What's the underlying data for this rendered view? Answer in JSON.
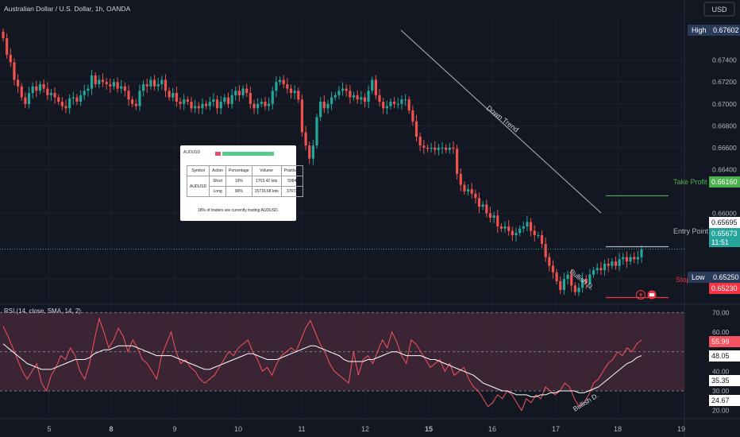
{
  "chart_data": [
    {
      "type": "candlestick",
      "title": "Australian Dollar / U.S. Dollar, 1h, OANDA",
      "currency": "USD",
      "ylim": [
        0.6519,
        0.6779
      ],
      "y_ticks": [
        "0.67400",
        "0.67200",
        "0.67000",
        "0.66800",
        "0.66600",
        "0.66400",
        "0.66000",
        "0.65400"
      ],
      "x_ticks": [
        {
          "label": "5",
          "bold": false
        },
        {
          "label": "8",
          "bold": true
        },
        {
          "label": "9",
          "bold": false
        },
        {
          "label": "10",
          "bold": false
        },
        {
          "label": "11",
          "bold": false
        },
        {
          "label": "12",
          "bold": false
        },
        {
          "label": "15",
          "bold": true
        },
        {
          "label": "16",
          "bold": false
        },
        {
          "label": "17",
          "bold": false
        },
        {
          "label": "18",
          "bold": false
        },
        {
          "label": "19",
          "bold": false
        }
      ],
      "close_series": [
        0.676,
        0.6745,
        0.6738,
        0.6722,
        0.6716,
        0.6706,
        0.67,
        0.671,
        0.6716,
        0.6712,
        0.6718,
        0.6714,
        0.6708,
        0.671,
        0.6706,
        0.6702,
        0.6698,
        0.6696,
        0.6705,
        0.6706,
        0.6702,
        0.6708,
        0.6712,
        0.6714,
        0.6726,
        0.6718,
        0.6722,
        0.672,
        0.6718,
        0.6716,
        0.672,
        0.6714,
        0.6716,
        0.6712,
        0.6704,
        0.67,
        0.6698,
        0.6712,
        0.6718,
        0.6716,
        0.6722,
        0.6716,
        0.6718,
        0.6722,
        0.6712,
        0.6706,
        0.671,
        0.6702,
        0.67,
        0.6704,
        0.6702,
        0.6696,
        0.6698,
        0.6696,
        0.67,
        0.6698,
        0.6702,
        0.6704,
        0.6696,
        0.6702,
        0.6706,
        0.67,
        0.6708,
        0.6712,
        0.6708,
        0.6714,
        0.671,
        0.67,
        0.6696,
        0.67,
        0.6702,
        0.6698,
        0.67,
        0.6712,
        0.672,
        0.6722,
        0.6718,
        0.6714,
        0.671,
        0.6712,
        0.6704,
        0.6674,
        0.6662,
        0.665,
        0.6662,
        0.6688,
        0.6702,
        0.6696,
        0.67,
        0.6706,
        0.6708,
        0.6712,
        0.6714,
        0.6712,
        0.6706,
        0.6708,
        0.6704,
        0.6706,
        0.6702,
        0.6712,
        0.6722,
        0.6708,
        0.6702,
        0.6696,
        0.6698,
        0.6702,
        0.67,
        0.67,
        0.6704,
        0.6704,
        0.6694,
        0.6684,
        0.667,
        0.6662,
        0.666,
        0.6659,
        0.666,
        0.6658,
        0.666,
        0.666,
        0.6658,
        0.666,
        0.6659,
        0.6636,
        0.6626,
        0.662,
        0.6622,
        0.6618,
        0.6614,
        0.6606,
        0.6608,
        0.66,
        0.6596,
        0.6598,
        0.6588,
        0.6586,
        0.6588,
        0.6584,
        0.658,
        0.6582,
        0.6586,
        0.6588,
        0.6592,
        0.6584,
        0.658,
        0.658,
        0.6572,
        0.656,
        0.6552,
        0.6546,
        0.6538,
        0.653,
        0.654,
        0.6544,
        0.6534,
        0.6528,
        0.6532,
        0.654,
        0.6536,
        0.6544,
        0.6548,
        0.655,
        0.6548,
        0.6554,
        0.6552,
        0.6556,
        0.6552,
        0.6558,
        0.656,
        0.6556,
        0.656,
        0.6558,
        0.656,
        0.6567
      ],
      "annotations": {
        "high_label": "High",
        "high_value": "0.67602",
        "low_label": "Low",
        "low_value": "0.65250",
        "take_profit_label": "Take Profit",
        "take_profit_value": "0.66160",
        "entry_label": "Entry Point",
        "entry_value": "0.65695",
        "current_value": "0.65673",
        "countdown": "11:51",
        "stop_label": "Stop",
        "stop_value": "0.65230",
        "trendline_label": "Down Trend",
        "pattern_label": "Bullish D."
      },
      "colors": {
        "up": "#26a69a",
        "down": "#ef5350",
        "background": "#131722",
        "grid": "#1e222d",
        "tp": "#4caf50",
        "stop": "#f23645",
        "entry": "#b2b5be"
      }
    },
    {
      "type": "line",
      "title": "RSI (14, close, SMA, 14, 2)",
      "ylim": [
        17,
        73
      ],
      "y_ticks": [
        "70.00",
        "60.00",
        "40.00",
        "30.00",
        "20.00"
      ],
      "band": [
        30,
        70
      ],
      "midline": 50,
      "rsi": [
        63,
        58,
        52,
        46,
        40,
        36,
        40,
        44,
        34,
        30,
        38,
        42,
        48,
        46,
        52,
        48,
        40,
        36,
        44,
        56,
        67,
        60,
        52,
        56,
        62,
        58,
        50,
        56,
        52,
        46,
        44,
        40,
        36,
        48,
        54,
        60,
        50,
        44,
        46,
        42,
        40,
        36,
        34,
        36,
        38,
        42,
        46,
        50,
        48,
        52,
        54,
        56,
        50,
        46,
        40,
        42,
        38,
        44,
        48,
        50,
        52,
        50,
        56,
        62,
        66,
        60,
        54,
        50,
        44,
        40,
        38,
        36,
        34,
        50,
        38,
        46,
        48,
        44,
        50,
        56,
        52,
        60,
        55,
        48,
        44,
        56,
        54,
        50,
        46,
        42,
        44,
        46,
        40,
        44,
        38,
        40,
        42,
        36,
        32,
        30,
        26,
        22,
        24,
        28,
        26,
        30,
        28,
        24,
        20,
        26,
        24,
        28,
        26,
        32,
        30,
        28,
        30,
        34,
        32,
        26,
        22,
        24,
        28,
        34,
        36,
        40,
        44,
        46,
        50,
        48,
        52,
        50,
        54,
        56
      ],
      "rsi_ma": [
        54,
        52,
        50,
        48,
        46,
        44,
        43,
        42,
        41,
        41,
        41,
        42,
        43,
        44,
        45,
        46,
        46,
        46,
        47,
        49,
        50,
        51,
        51,
        52,
        53,
        53,
        53,
        53,
        52,
        51,
        50,
        49,
        48,
        48,
        48,
        48,
        47,
        46,
        45,
        44,
        43,
        42,
        41,
        41,
        42,
        43,
        44,
        45,
        46,
        47,
        48,
        49,
        49,
        48,
        47,
        46,
        46,
        46,
        47,
        48,
        49,
        50,
        51,
        52,
        53,
        53,
        52,
        51,
        50,
        49,
        48,
        46,
        45,
        45,
        45,
        45,
        46,
        46,
        47,
        48,
        49,
        50,
        50,
        49,
        48,
        48,
        48,
        48,
        47,
        46,
        46,
        45,
        44,
        43,
        42,
        41,
        40,
        39,
        38,
        36,
        34,
        33,
        32,
        31,
        30,
        30,
        29,
        28,
        28,
        28,
        27,
        27,
        28,
        28,
        29,
        29,
        30,
        30,
        30,
        30,
        29,
        29,
        30,
        31,
        32,
        34,
        36,
        38,
        40,
        42,
        44,
        45,
        47,
        48
      ],
      "labels": {
        "value_a": "55.99",
        "value_b": "48.05",
        "value_c": "35.35",
        "value_d": "24.67",
        "pattern": "Bullish D."
      },
      "colors": {
        "line": "#f7525f",
        "ma": "#ffffff",
        "band": "#4a2a3a"
      }
    }
  ],
  "sentiment_widget": {
    "symbol": "AUDUSD",
    "short_fraction": 0.1,
    "headers": [
      "Symbol",
      "Action",
      "Percentage",
      "Volume",
      "Positions"
    ],
    "rows": [
      {
        "action": "Short",
        "percentage": "10%",
        "volume": "1703.42 lots",
        "positions": "5984"
      },
      {
        "action": "Long",
        "percentage": "90%",
        "volume": "15716.68 lots",
        "positions": "37672"
      }
    ],
    "footer": "18% of traders are currently trading AUDUSD."
  }
}
